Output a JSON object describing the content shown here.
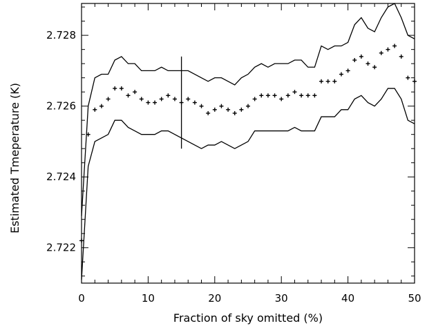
{
  "chart_data": {
    "type": "scatter",
    "title": "",
    "xlabel": "Fraction of sky omitted (%)",
    "ylabel": "Estimated Tmeperature (K)",
    "xlim": [
      0,
      50
    ],
    "ylim": [
      2.721,
      2.7289
    ],
    "xticks": [
      0,
      10,
      20,
      30,
      40,
      50
    ],
    "xtick_labels": [
      "0",
      "10",
      "20",
      "30",
      "40",
      "50"
    ],
    "yticks": [
      2.722,
      2.724,
      2.726,
      2.728
    ],
    "ytick_labels": [
      "2.722",
      "2.724",
      "2.726",
      "2.728"
    ],
    "grid": false,
    "series": [
      {
        "marker": "plus",
        "x": [
          0,
          1,
          2,
          3,
          4,
          5,
          6,
          7,
          8,
          9,
          10,
          11,
          12,
          13,
          14,
          15,
          16,
          17,
          18,
          19,
          20,
          21,
          22,
          23,
          24,
          25,
          26,
          27,
          28,
          29,
          30,
          31,
          32,
          33,
          34,
          35,
          36,
          37,
          38,
          39,
          40,
          41,
          42,
          43,
          44,
          45,
          46,
          47,
          48,
          49,
          50
        ],
        "y": [
          2.7222,
          2.7252,
          2.7259,
          2.726,
          2.7262,
          2.7265,
          2.7265,
          2.7263,
          2.7264,
          2.7262,
          2.7261,
          2.7261,
          2.7262,
          2.7263,
          2.7262,
          2.7261,
          2.7262,
          2.7261,
          2.726,
          2.7258,
          2.7259,
          2.726,
          2.7259,
          2.7258,
          2.7259,
          2.726,
          2.7262,
          2.7263,
          2.7263,
          2.7263,
          2.7262,
          2.7263,
          2.7264,
          2.7263,
          2.7263,
          2.7263,
          2.7267,
          2.7267,
          2.7267,
          2.7269,
          2.727,
          2.7273,
          2.7274,
          2.7272,
          2.7271,
          2.7275,
          2.7276,
          2.7277,
          2.7274,
          2.7268,
          2.7267
        ]
      },
      {
        "marker": "line",
        "x": [
          0,
          1,
          2,
          3,
          4,
          5,
          6,
          7,
          8,
          9,
          10,
          11,
          12,
          13,
          14,
          15,
          16,
          17,
          18,
          19,
          20,
          21,
          22,
          23,
          24,
          25,
          26,
          27,
          28,
          29,
          30,
          31,
          32,
          33,
          34,
          35,
          36,
          37,
          38,
          39,
          40,
          41,
          42,
          43,
          44,
          45,
          46,
          47,
          48,
          49,
          50
        ],
        "y": [
          2.7229,
          2.726,
          2.7268,
          2.7269,
          2.7269,
          2.7273,
          2.7274,
          2.7272,
          2.7272,
          2.727,
          2.727,
          2.727,
          2.7271,
          2.727,
          2.727,
          2.727,
          2.727,
          2.7269,
          2.7268,
          2.7267,
          2.7268,
          2.7268,
          2.7267,
          2.7266,
          2.7268,
          2.7269,
          2.7271,
          2.7272,
          2.7271,
          2.7272,
          2.7272,
          2.7272,
          2.7273,
          2.7273,
          2.7271,
          2.7271,
          2.7277,
          2.7276,
          2.7277,
          2.7277,
          2.7278,
          2.7283,
          2.7285,
          2.7282,
          2.7281,
          2.7285,
          2.7288,
          2.7289,
          2.7285,
          2.728,
          2.7279
        ]
      },
      {
        "marker": "line",
        "x": [
          0,
          1,
          2,
          3,
          4,
          5,
          6,
          7,
          8,
          9,
          10,
          11,
          12,
          13,
          14,
          15,
          16,
          17,
          18,
          19,
          20,
          21,
          22,
          23,
          24,
          25,
          26,
          27,
          28,
          29,
          30,
          31,
          32,
          33,
          34,
          35,
          36,
          37,
          38,
          39,
          40,
          41,
          42,
          43,
          44,
          45,
          46,
          47,
          48,
          49,
          50
        ],
        "y": [
          2.7211,
          2.7243,
          2.725,
          2.7251,
          2.7252,
          2.7256,
          2.7256,
          2.7254,
          2.7253,
          2.7252,
          2.7252,
          2.7252,
          2.7253,
          2.7253,
          2.7252,
          2.7251,
          2.725,
          2.7249,
          2.7248,
          2.7249,
          2.7249,
          2.725,
          2.7249,
          2.7248,
          2.7249,
          2.725,
          2.7253,
          2.7253,
          2.7253,
          2.7253,
          2.7253,
          2.7253,
          2.7254,
          2.7253,
          2.7253,
          2.7253,
          2.7257,
          2.7257,
          2.7257,
          2.7259,
          2.7259,
          2.7262,
          2.7263,
          2.7261,
          2.726,
          2.7262,
          2.7265,
          2.7265,
          2.7262,
          2.7256,
          2.7255
        ]
      }
    ],
    "annotations": [
      {
        "type": "vertical-line",
        "x": 15,
        "y_from": 2.7248,
        "y_to": 2.7274
      }
    ]
  }
}
